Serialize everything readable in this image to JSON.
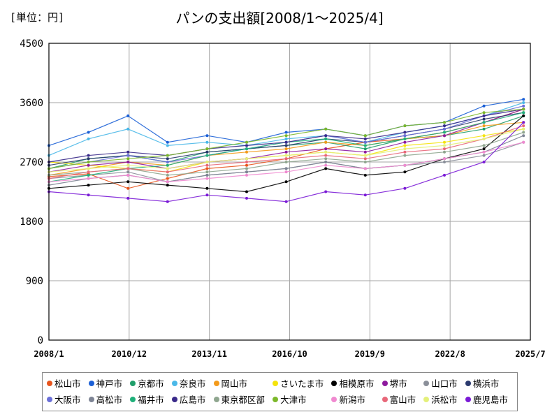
{
  "header": {
    "unit_label": "[単位：円]",
    "title": "パンの支出額[2008/1～2025/4]"
  },
  "chart_data": {
    "type": "line",
    "title": "パンの支出額[2008/1～2025/4]",
    "xlabel": "",
    "ylabel": "",
    "ylim": [
      0,
      4500
    ],
    "y_ticks": [
      0,
      900,
      1800,
      2700,
      3600,
      4500
    ],
    "y_tick_labels": [
      "0",
      "900",
      "1800",
      "2700",
      "3600",
      "4500"
    ],
    "x_range": [
      "2008/1",
      "2025/7"
    ],
    "x_ticks": [
      "2008/1",
      "2010/12",
      "2013/11",
      "2016/10",
      "2019/9",
      "2022/8",
      "2025/7"
    ],
    "grid": true,
    "legend_position": "bottom",
    "series": [
      {
        "name": "松山市",
        "color": "#e8541c",
        "values": [
          2480,
          2520,
          2300,
          2450,
          2600,
          2650,
          2750,
          2900,
          3000,
          3050,
          3150,
          3300,
          3500
        ]
      },
      {
        "name": "神戸市",
        "color": "#1a5fd6",
        "values": [
          2950,
          3150,
          3400,
          3000,
          3100,
          3000,
          3150,
          3200,
          3100,
          3250,
          3300,
          3550,
          3650
        ]
      },
      {
        "name": "京都市",
        "color": "#1f9e6a",
        "values": [
          2600,
          2750,
          2800,
          2700,
          2850,
          2900,
          2950,
          3000,
          2900,
          3050,
          3100,
          3200,
          3400
        ]
      },
      {
        "name": "奈良市",
        "color": "#4ab8e8",
        "values": [
          2800,
          3050,
          3200,
          2950,
          3000,
          2950,
          3050,
          3100,
          3000,
          3150,
          3250,
          3400,
          3600
        ]
      },
      {
        "name": "岡山市",
        "color": "#f39a1a",
        "values": [
          2500,
          2600,
          2700,
          2650,
          2800,
          2850,
          2900,
          3000,
          2950,
          3050,
          3100,
          3250,
          3300
        ]
      },
      {
        "name": "さいたま市",
        "color": "#f5e30b",
        "values": [
          2700,
          2650,
          2600,
          2550,
          2700,
          2750,
          2800,
          2850,
          2800,
          2950,
          3000,
          3100,
          3200
        ]
      },
      {
        "name": "相模原市",
        "color": "#000000",
        "values": [
          2300,
          2350,
          2400,
          2350,
          2300,
          2250,
          2400,
          2600,
          2500,
          2550,
          2750,
          2900,
          3400
        ]
      },
      {
        "name": "堺市",
        "color": "#8e1a9e",
        "values": [
          2550,
          2650,
          2700,
          2600,
          2700,
          2750,
          2850,
          2900,
          2850,
          3000,
          3100,
          3300,
          3500
        ]
      },
      {
        "name": "山口市",
        "color": "#8a8f99",
        "values": [
          2450,
          2500,
          2550,
          2400,
          2500,
          2550,
          2600,
          2700,
          2600,
          2650,
          2700,
          2800,
          3000
        ]
      },
      {
        "name": "横浜市",
        "color": "#2b3a6e",
        "values": [
          2650,
          2750,
          2800,
          2750,
          2850,
          2900,
          2950,
          3050,
          3000,
          3100,
          3200,
          3350,
          3450
        ]
      },
      {
        "name": "大阪市",
        "color": "#6a6fd8",
        "values": [
          2600,
          2700,
          2800,
          2700,
          2800,
          2900,
          3000,
          3100,
          3000,
          3100,
          3200,
          3400,
          3550
        ]
      },
      {
        "name": "高松市",
        "color": "#7d8494",
        "values": [
          2350,
          2450,
          2500,
          2400,
          2500,
          2550,
          2600,
          2700,
          2600,
          2650,
          2750,
          2850,
          3100
        ]
      },
      {
        "name": "福井市",
        "color": "#1fb07a",
        "values": [
          2400,
          2500,
          2600,
          2650,
          2800,
          2900,
          3000,
          3050,
          2950,
          3050,
          3150,
          3300,
          3450
        ]
      },
      {
        "name": "広島市",
        "color": "#3a2a8a",
        "values": [
          2700,
          2800,
          2850,
          2800,
          2900,
          2950,
          3000,
          3100,
          3050,
          3150,
          3250,
          3400,
          3500
        ]
      },
      {
        "name": "東京都区部",
        "color": "#8fa68f",
        "values": [
          2500,
          2550,
          2600,
          2500,
          2550,
          2600,
          2700,
          2750,
          2700,
          2800,
          2850,
          2950,
          3150
        ]
      },
      {
        "name": "大津市",
        "color": "#7cb82a",
        "values": [
          2600,
          2700,
          2750,
          2800,
          2900,
          3000,
          3100,
          3200,
          3100,
          3250,
          3300,
          3450,
          3500
        ]
      },
      {
        "name": "新潟市",
        "color": "#f08ad0",
        "values": [
          2400,
          2450,
          2500,
          2400,
          2450,
          2500,
          2550,
          2650,
          2600,
          2650,
          2750,
          2850,
          3000
        ]
      },
      {
        "name": "富山市",
        "color": "#e8687a",
        "values": [
          2450,
          2550,
          2600,
          2550,
          2650,
          2700,
          2750,
          2800,
          2750,
          2850,
          2900,
          3050,
          3250
        ]
      },
      {
        "name": "浜松市",
        "color": "#e4f07a",
        "values": [
          2550,
          2600,
          2650,
          2600,
          2700,
          2750,
          2800,
          2850,
          2800,
          2900,
          2950,
          3050,
          3200
        ]
      },
      {
        "name": "鹿児島市",
        "color": "#7a1ad6",
        "values": [
          2250,
          2200,
          2150,
          2100,
          2200,
          2150,
          2100,
          2250,
          2200,
          2300,
          2500,
          2700,
          3300
        ]
      }
    ]
  }
}
